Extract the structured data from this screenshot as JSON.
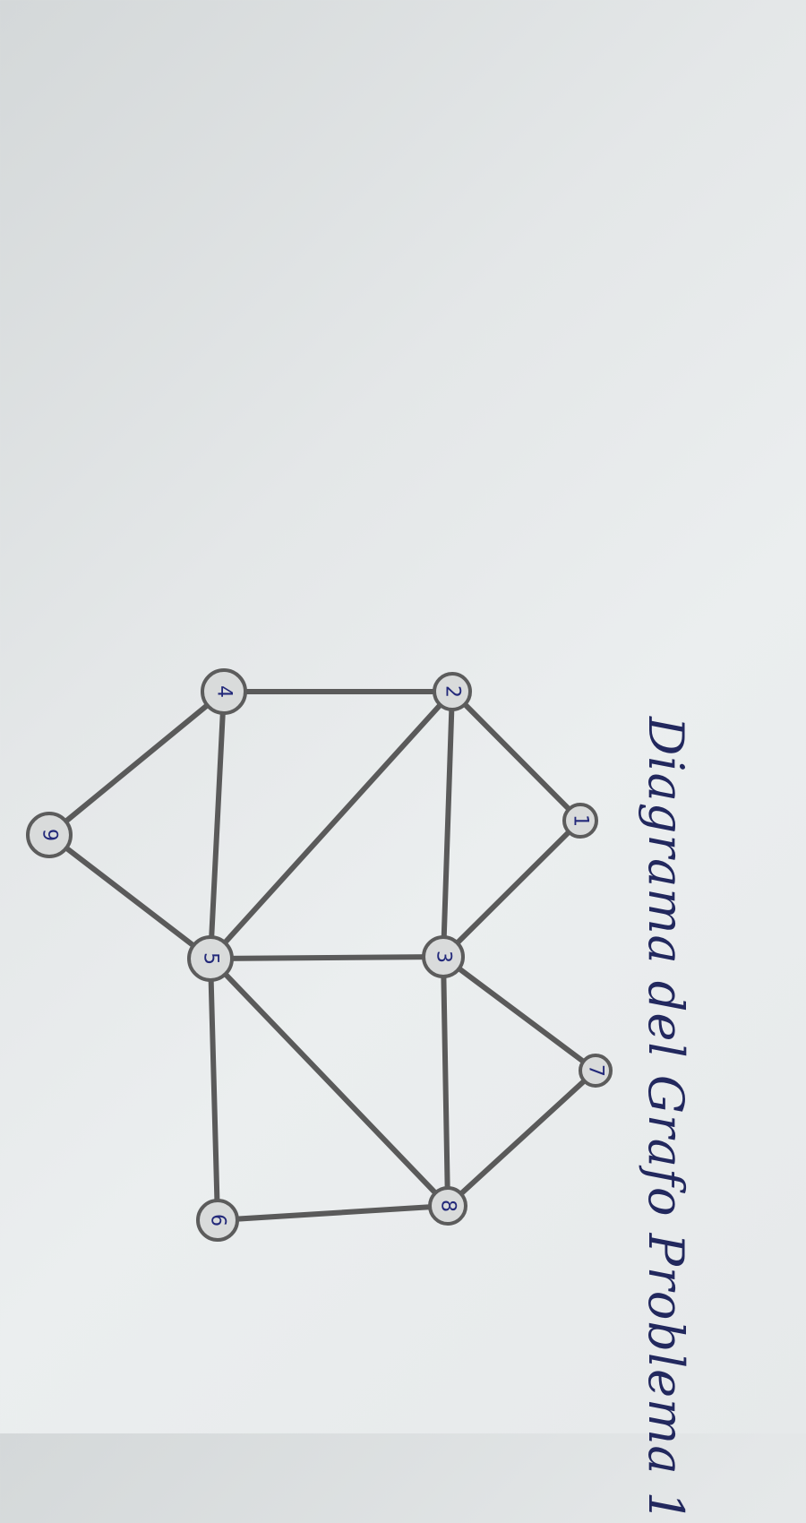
{
  "title": "Diagrama del Grafo Problema 1",
  "graph": {
    "nodes": [
      {
        "id": "1",
        "label": "1"
      },
      {
        "id": "2",
        "label": "2"
      },
      {
        "id": "3",
        "label": "3"
      },
      {
        "id": "4",
        "label": "4"
      },
      {
        "id": "5",
        "label": "5"
      },
      {
        "id": "6",
        "label": "6"
      },
      {
        "id": "7",
        "label": "7"
      },
      {
        "id": "8",
        "label": "8"
      },
      {
        "id": "9",
        "label": "9"
      }
    ],
    "edges": [
      [
        "4",
        "2"
      ],
      [
        "4",
        "9"
      ],
      [
        "4",
        "5"
      ],
      [
        "9",
        "5"
      ],
      [
        "2",
        "1"
      ],
      [
        "2",
        "3"
      ],
      [
        "2",
        "5"
      ],
      [
        "1",
        "3"
      ],
      [
        "3",
        "5"
      ],
      [
        "3",
        "7"
      ],
      [
        "3",
        "8"
      ],
      [
        "7",
        "8"
      ],
      [
        "5",
        "8"
      ],
      [
        "5",
        "6"
      ],
      [
        "6",
        "8"
      ]
    ],
    "colors": {
      "edge": "#5a5a5a",
      "node_fill": "#d9dbdb",
      "label": "#23297a",
      "title": "#22285e"
    }
  }
}
